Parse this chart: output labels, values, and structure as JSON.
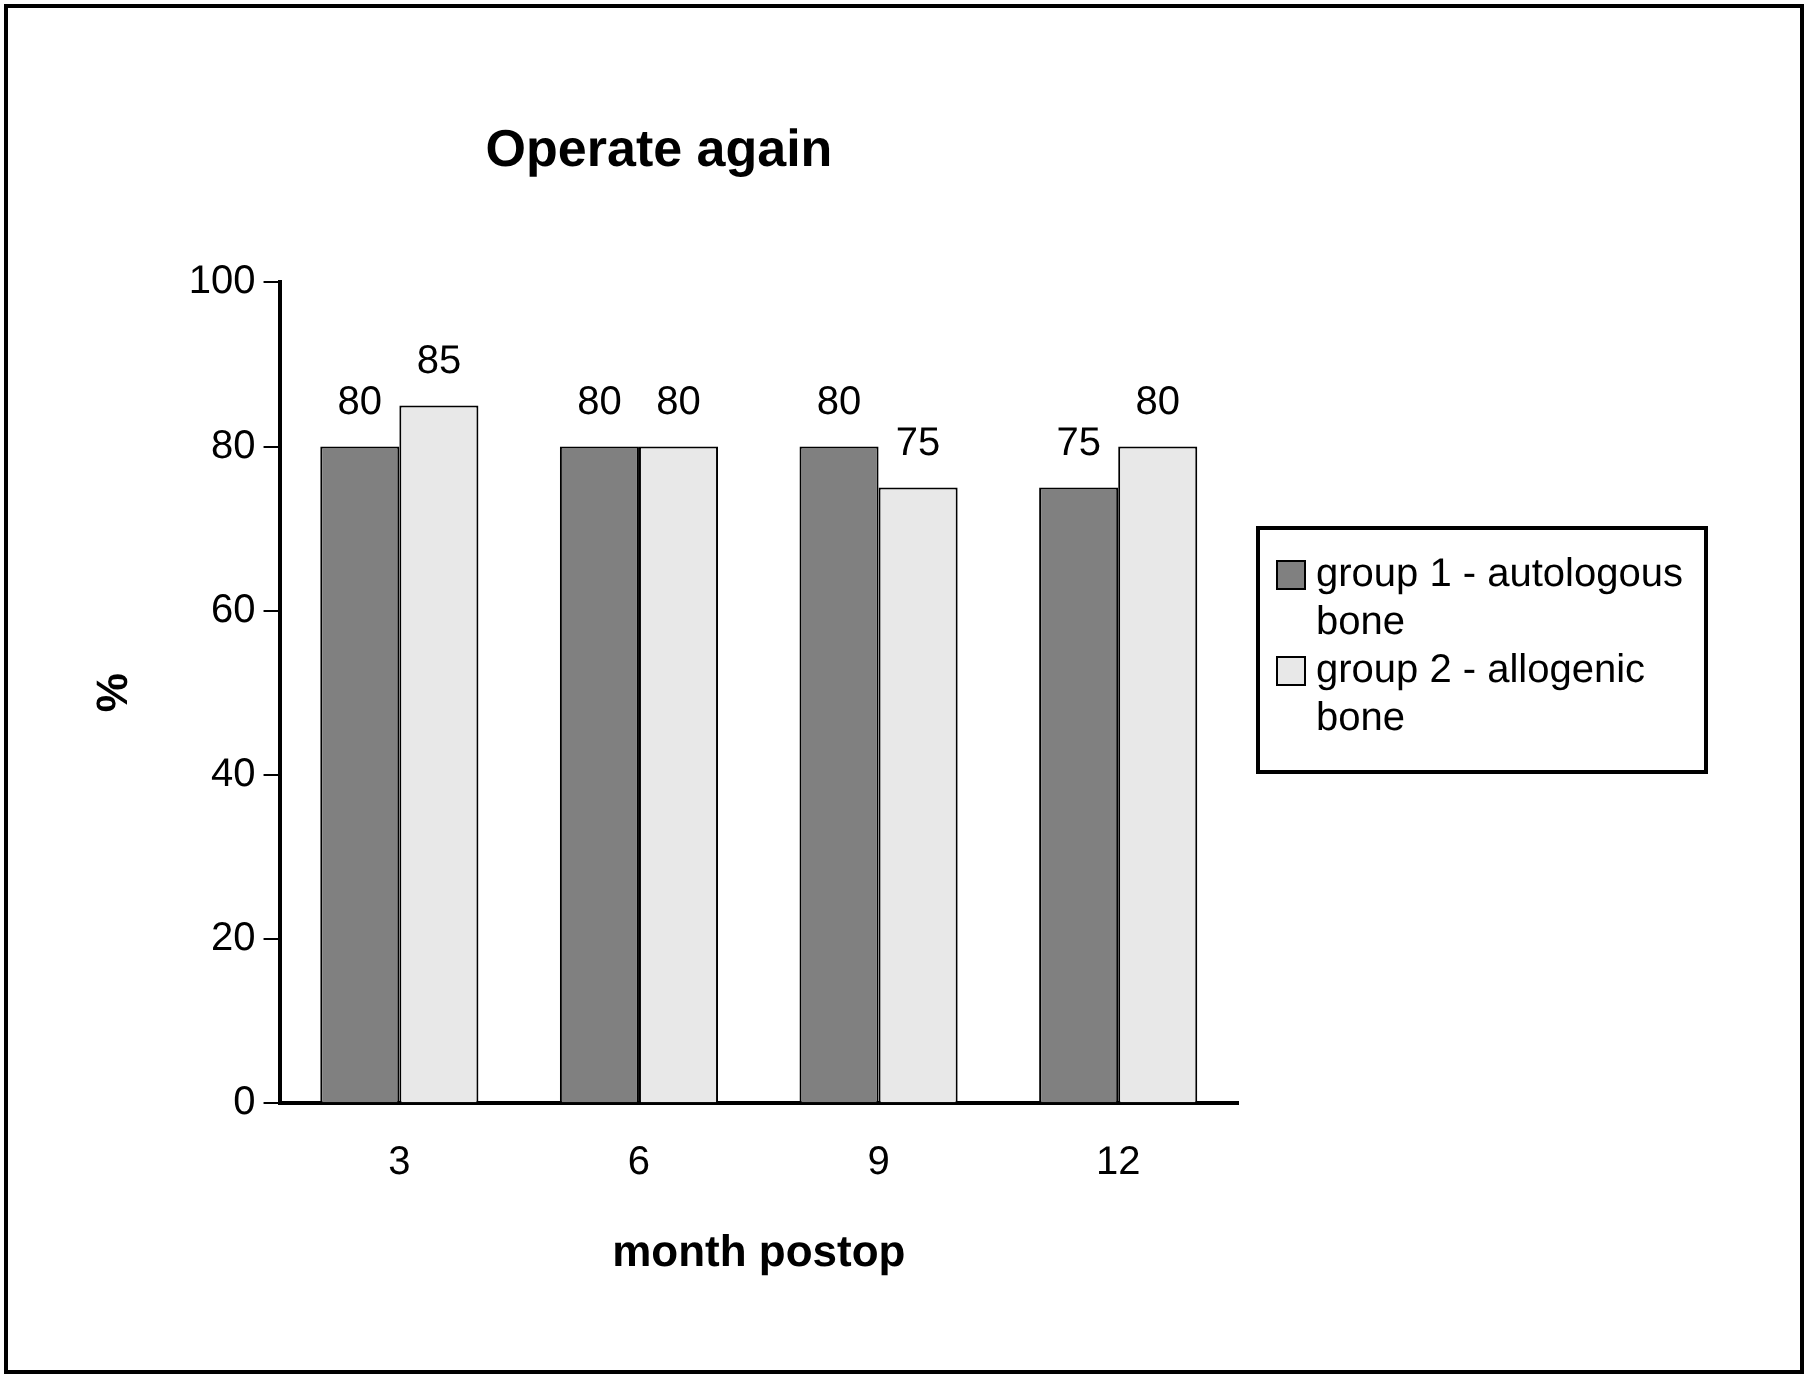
{
  "chart_data": {
    "type": "bar",
    "title": "Operate again",
    "xlabel": "month postop",
    "ylabel": "%",
    "categories": [
      "3",
      "6",
      "9",
      "12"
    ],
    "series": [
      {
        "name": "group 1 - autologous bone",
        "color": "#808080",
        "values": [
          80,
          80,
          80,
          75
        ]
      },
      {
        "name": "group 2 - allogenic bone",
        "color": "#e8e8e8",
        "values": [
          85,
          80,
          75,
          80
        ]
      }
    ],
    "ylim": [
      0,
      100
    ],
    "yticks": [
      0,
      20,
      40,
      60,
      80,
      100
    ],
    "grid": false,
    "legend": "right",
    "data_labels": true
  }
}
